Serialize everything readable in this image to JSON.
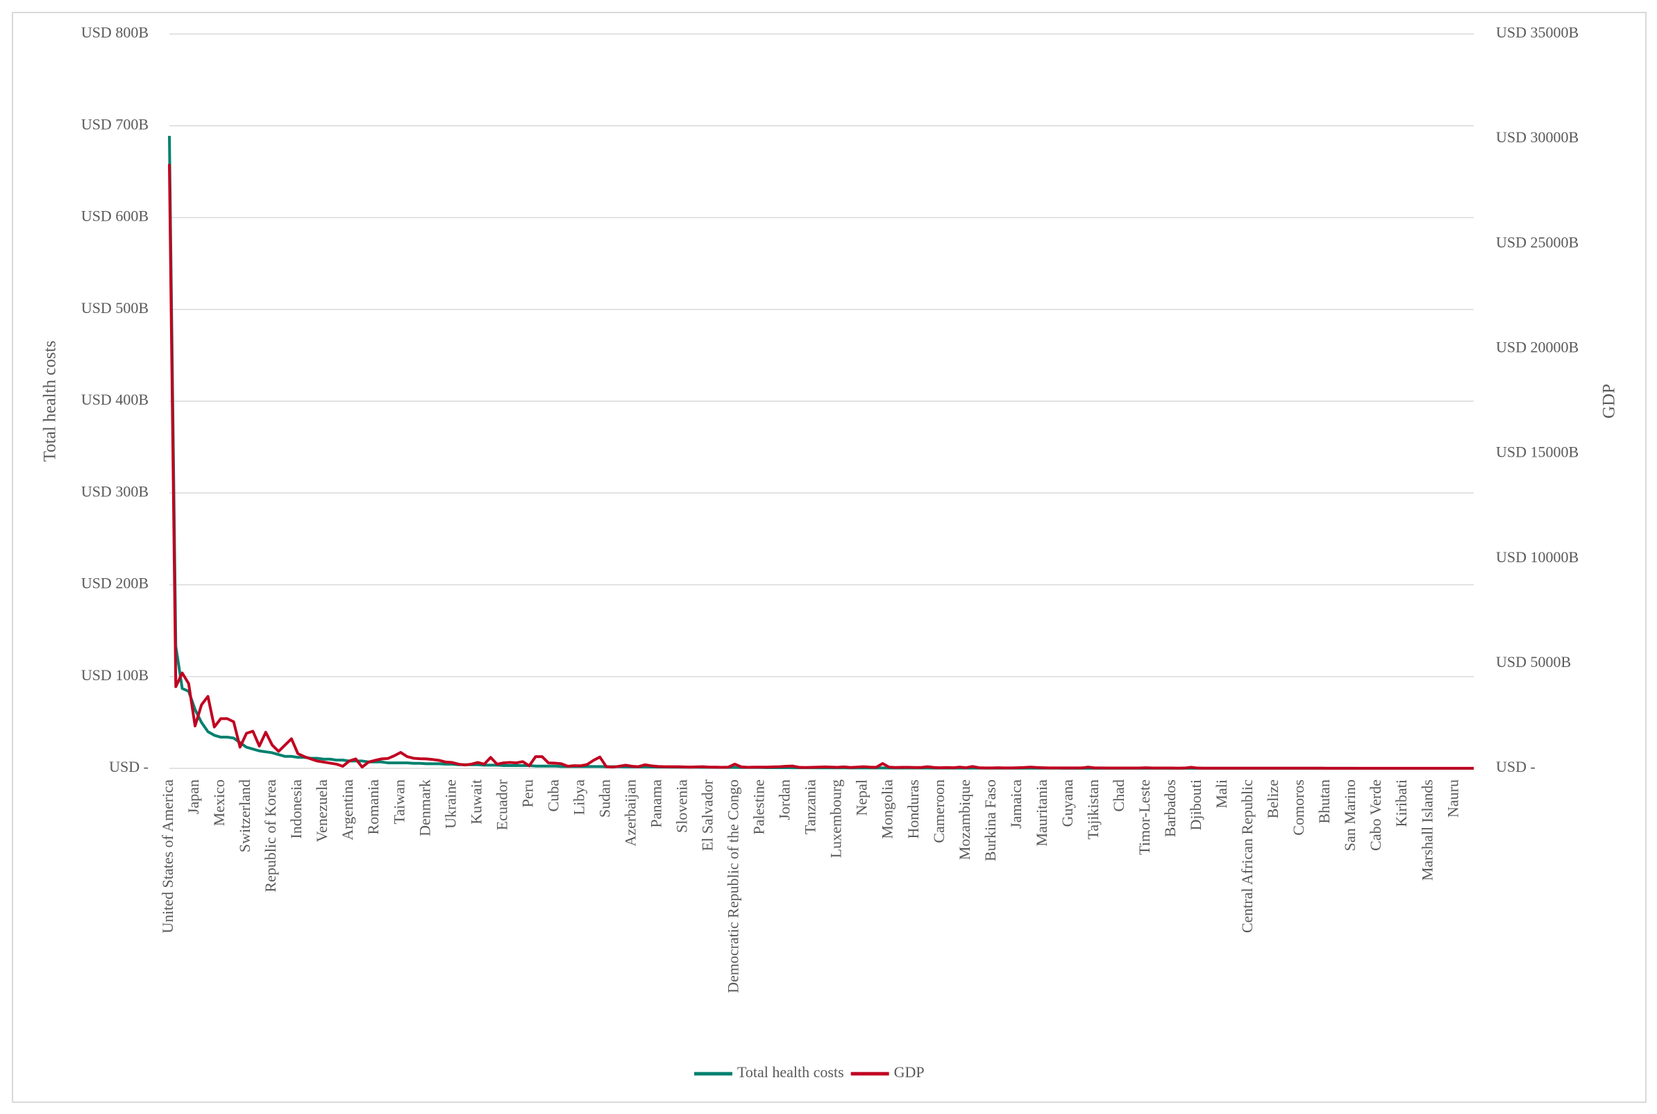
{
  "chart_data": {
    "type": "line",
    "categories": [
      "United States of America",
      null,
      null,
      null,
      "Japan",
      null,
      null,
      null,
      "Mexico",
      null,
      null,
      null,
      "Switzerland",
      null,
      null,
      null,
      "Republic of Korea",
      null,
      null,
      null,
      "Indonesia",
      null,
      null,
      null,
      "Venezuela",
      null,
      null,
      null,
      "Argentina",
      null,
      null,
      null,
      "Romania",
      null,
      null,
      null,
      "Taiwan",
      null,
      null,
      null,
      "Denmark",
      null,
      null,
      null,
      "Ukraine",
      null,
      null,
      null,
      "Kuwait",
      null,
      null,
      null,
      "Ecuador",
      null,
      null,
      null,
      "Peru",
      null,
      null,
      null,
      "Cuba",
      null,
      null,
      null,
      "Libya",
      null,
      null,
      null,
      "Sudan",
      null,
      null,
      null,
      "Azerbaijan",
      null,
      null,
      null,
      "Panama",
      null,
      null,
      null,
      "Slovenia",
      null,
      null,
      null,
      "El Salvador",
      null,
      null,
      null,
      "Democratic Republic of the Congo",
      null,
      null,
      null,
      "Palestine",
      null,
      null,
      null,
      "Jordan",
      null,
      null,
      null,
      "Tanzania",
      null,
      null,
      null,
      "Luxembourg",
      null,
      null,
      null,
      "Nepal",
      null,
      null,
      null,
      "Mongolia",
      null,
      null,
      null,
      "Honduras",
      null,
      null,
      null,
      "Cameroon",
      null,
      null,
      null,
      "Mozambique",
      null,
      null,
      null,
      "Burkina Faso",
      null,
      null,
      null,
      "Jamaica",
      null,
      null,
      null,
      "Mauritania",
      null,
      null,
      null,
      "Guyana",
      null,
      null,
      null,
      "Tajikistan",
      null,
      null,
      null,
      "Chad",
      null,
      null,
      null,
      "Timor-Leste",
      null,
      null,
      null,
      "Barbados",
      null,
      null,
      null,
      "Djibouti",
      null,
      null,
      null,
      "Mali",
      null,
      null,
      null,
      "Central African Republic",
      null,
      null,
      null,
      "Belize",
      null,
      null,
      null,
      "Comoros",
      null,
      null,
      null,
      "Bhutan",
      null,
      null,
      null,
      "San Marino",
      null,
      null,
      null,
      "Cabo Verde",
      null,
      null,
      null,
      "Kiribati",
      null,
      null,
      null,
      "Marshall Islands",
      null,
      null,
      null,
      "Nauru",
      null,
      null,
      null
    ],
    "series": [
      {
        "name": "Total health costs",
        "color": "#00806e",
        "axis": "y",
        "values": [
          689,
          133,
          87,
          84,
          64,
          50,
          40,
          36,
          34,
          34,
          33,
          28,
          23,
          21,
          19,
          18,
          17,
          15,
          13,
          13,
          12,
          12,
          11,
          11,
          10,
          10,
          9,
          9,
          8,
          8,
          8,
          7,
          7,
          7,
          6,
          6,
          6,
          6,
          5.5,
          5.5,
          5,
          5,
          5,
          4.5,
          4.5,
          4,
          4,
          4,
          4,
          3.5,
          3.5,
          3.5,
          3,
          3,
          3,
          3,
          3,
          2.5,
          2.5,
          2.5,
          2.5,
          2,
          2,
          2,
          2,
          2,
          2,
          2,
          1.8,
          1.8,
          1.8,
          1.6,
          1.6,
          1.6,
          1.5,
          1.5,
          1.4,
          1.4,
          1.3,
          1.3,
          1.2,
          1.2,
          1.2,
          1.1,
          1.1,
          1,
          1,
          1,
          1,
          0.9,
          0.9,
          0.9,
          0.9,
          0.8,
          0.8,
          0.8,
          0.8,
          0.7,
          0.7,
          0.7,
          0.7,
          0.6,
          0.6,
          0.6,
          0.6,
          0.6,
          0.5,
          0.5,
          0.5,
          0.5,
          0.5,
          0.5,
          0.4,
          0.4,
          0.4,
          0.4,
          0.4,
          0.4,
          0.4,
          0.3,
          0.3,
          0.3,
          0.3,
          0.3,
          0.3,
          0.3,
          0.3,
          0.2,
          0.2,
          0.2,
          0.2,
          0.2,
          0.2,
          0.2,
          0.2,
          0.2,
          0.2,
          0.2,
          0.2,
          0.1,
          0.1,
          0.1,
          0.1,
          0.1,
          0.1,
          0.1,
          0.1,
          0.1,
          0.1,
          0.1,
          0.1,
          0.1,
          0.1,
          0.1,
          0.1,
          0.1,
          0.1,
          0.1,
          0.1,
          0.1,
          0.1,
          0.1,
          0.1,
          0.1,
          0.1,
          0.05,
          0.05,
          0.05,
          0.05,
          0.05,
          0.05,
          0.05,
          0.05,
          0.05,
          0.05,
          0.05,
          0.05,
          0.05,
          0.05,
          0.05,
          0.05,
          0.05,
          0.05,
          0.05,
          0.05,
          0.03,
          0.03,
          0.03,
          0.03,
          0.03,
          0.03,
          0.03,
          0.03,
          0.03,
          0.03,
          0.02,
          0.02,
          0.02,
          0.02,
          0.02,
          0.02,
          0.01,
          0.01,
          0.01
        ]
      },
      {
        "name": "GDP",
        "color": "#c00020",
        "axis": "y2",
        "values": [
          28800,
          3890,
          4545,
          4040,
          2020,
          3030,
          3430,
          1970,
          2370,
          2370,
          2220,
          1010,
          1670,
          1770,
          1060,
          1720,
          1110,
          810,
          1110,
          1410,
          700,
          560,
          450,
          350,
          300,
          250,
          200,
          100,
          350,
          450,
          60,
          300,
          380,
          450,
          470,
          600,
          760,
          560,
          480,
          460,
          450,
          420,
          380,
          300,
          280,
          200,
          160,
          200,
          280,
          200,
          520,
          200,
          260,
          280,
          260,
          320,
          120,
          560,
          560,
          260,
          250,
          220,
          100,
          130,
          120,
          180,
          380,
          540,
          80,
          60,
          100,
          150,
          100,
          80,
          170,
          120,
          90,
          80,
          80,
          80,
          70,
          60,
          70,
          80,
          60,
          60,
          50,
          60,
          200,
          70,
          50,
          60,
          60,
          60,
          70,
          80,
          100,
          110,
          50,
          40,
          50,
          60,
          70,
          60,
          50,
          70,
          40,
          60,
          80,
          60,
          50,
          230,
          60,
          40,
          50,
          50,
          40,
          40,
          80,
          40,
          30,
          40,
          30,
          60,
          30,
          90,
          30,
          20,
          20,
          30,
          20,
          20,
          30,
          40,
          60,
          40,
          30,
          20,
          20,
          20,
          20,
          20,
          20,
          60,
          20,
          20,
          15,
          15,
          15,
          15,
          15,
          15,
          30,
          15,
          15,
          15,
          15,
          10,
          15,
          50,
          15,
          10,
          10,
          10,
          10,
          10,
          10,
          10,
          10,
          10,
          8,
          8,
          8,
          8,
          8,
          8,
          8,
          8,
          8,
          8,
          6,
          6,
          6,
          6,
          6,
          6,
          6,
          6,
          6,
          6,
          5,
          5,
          5,
          5,
          5,
          5,
          5,
          5,
          5,
          5,
          4,
          4,
          3,
          3
        ]
      }
    ],
    "ylabel": "Total health costs",
    "y2label": "GDP",
    "ylim": [
      0,
      800
    ],
    "yticks": [
      {
        "value": 0,
        "label": "USD -"
      },
      {
        "value": 100,
        "label": "USD 100B"
      },
      {
        "value": 200,
        "label": "USD 200B"
      },
      {
        "value": 300,
        "label": "USD 300B"
      },
      {
        "value": 400,
        "label": "USD 400B"
      },
      {
        "value": 500,
        "label": "USD 500B"
      },
      {
        "value": 600,
        "label": "USD 600B"
      },
      {
        "value": 700,
        "label": "USD 700B"
      },
      {
        "value": 800,
        "label": "USD 800B"
      }
    ],
    "y2lim": [
      0,
      35000
    ],
    "y2ticks": [
      {
        "value": 0,
        "label": "USD -"
      },
      {
        "value": 5000,
        "label": "USD 5000B"
      },
      {
        "value": 10000,
        "label": "USD 10000B"
      },
      {
        "value": 15000,
        "label": "USD 15000B"
      },
      {
        "value": 20000,
        "label": "USD 20000B"
      },
      {
        "value": 25000,
        "label": "USD 25000B"
      },
      {
        "value": 30000,
        "label": "USD 30000B"
      },
      {
        "value": 35000,
        "label": "USD 35000B"
      }
    ],
    "grid": true,
    "legend": "bottom"
  }
}
